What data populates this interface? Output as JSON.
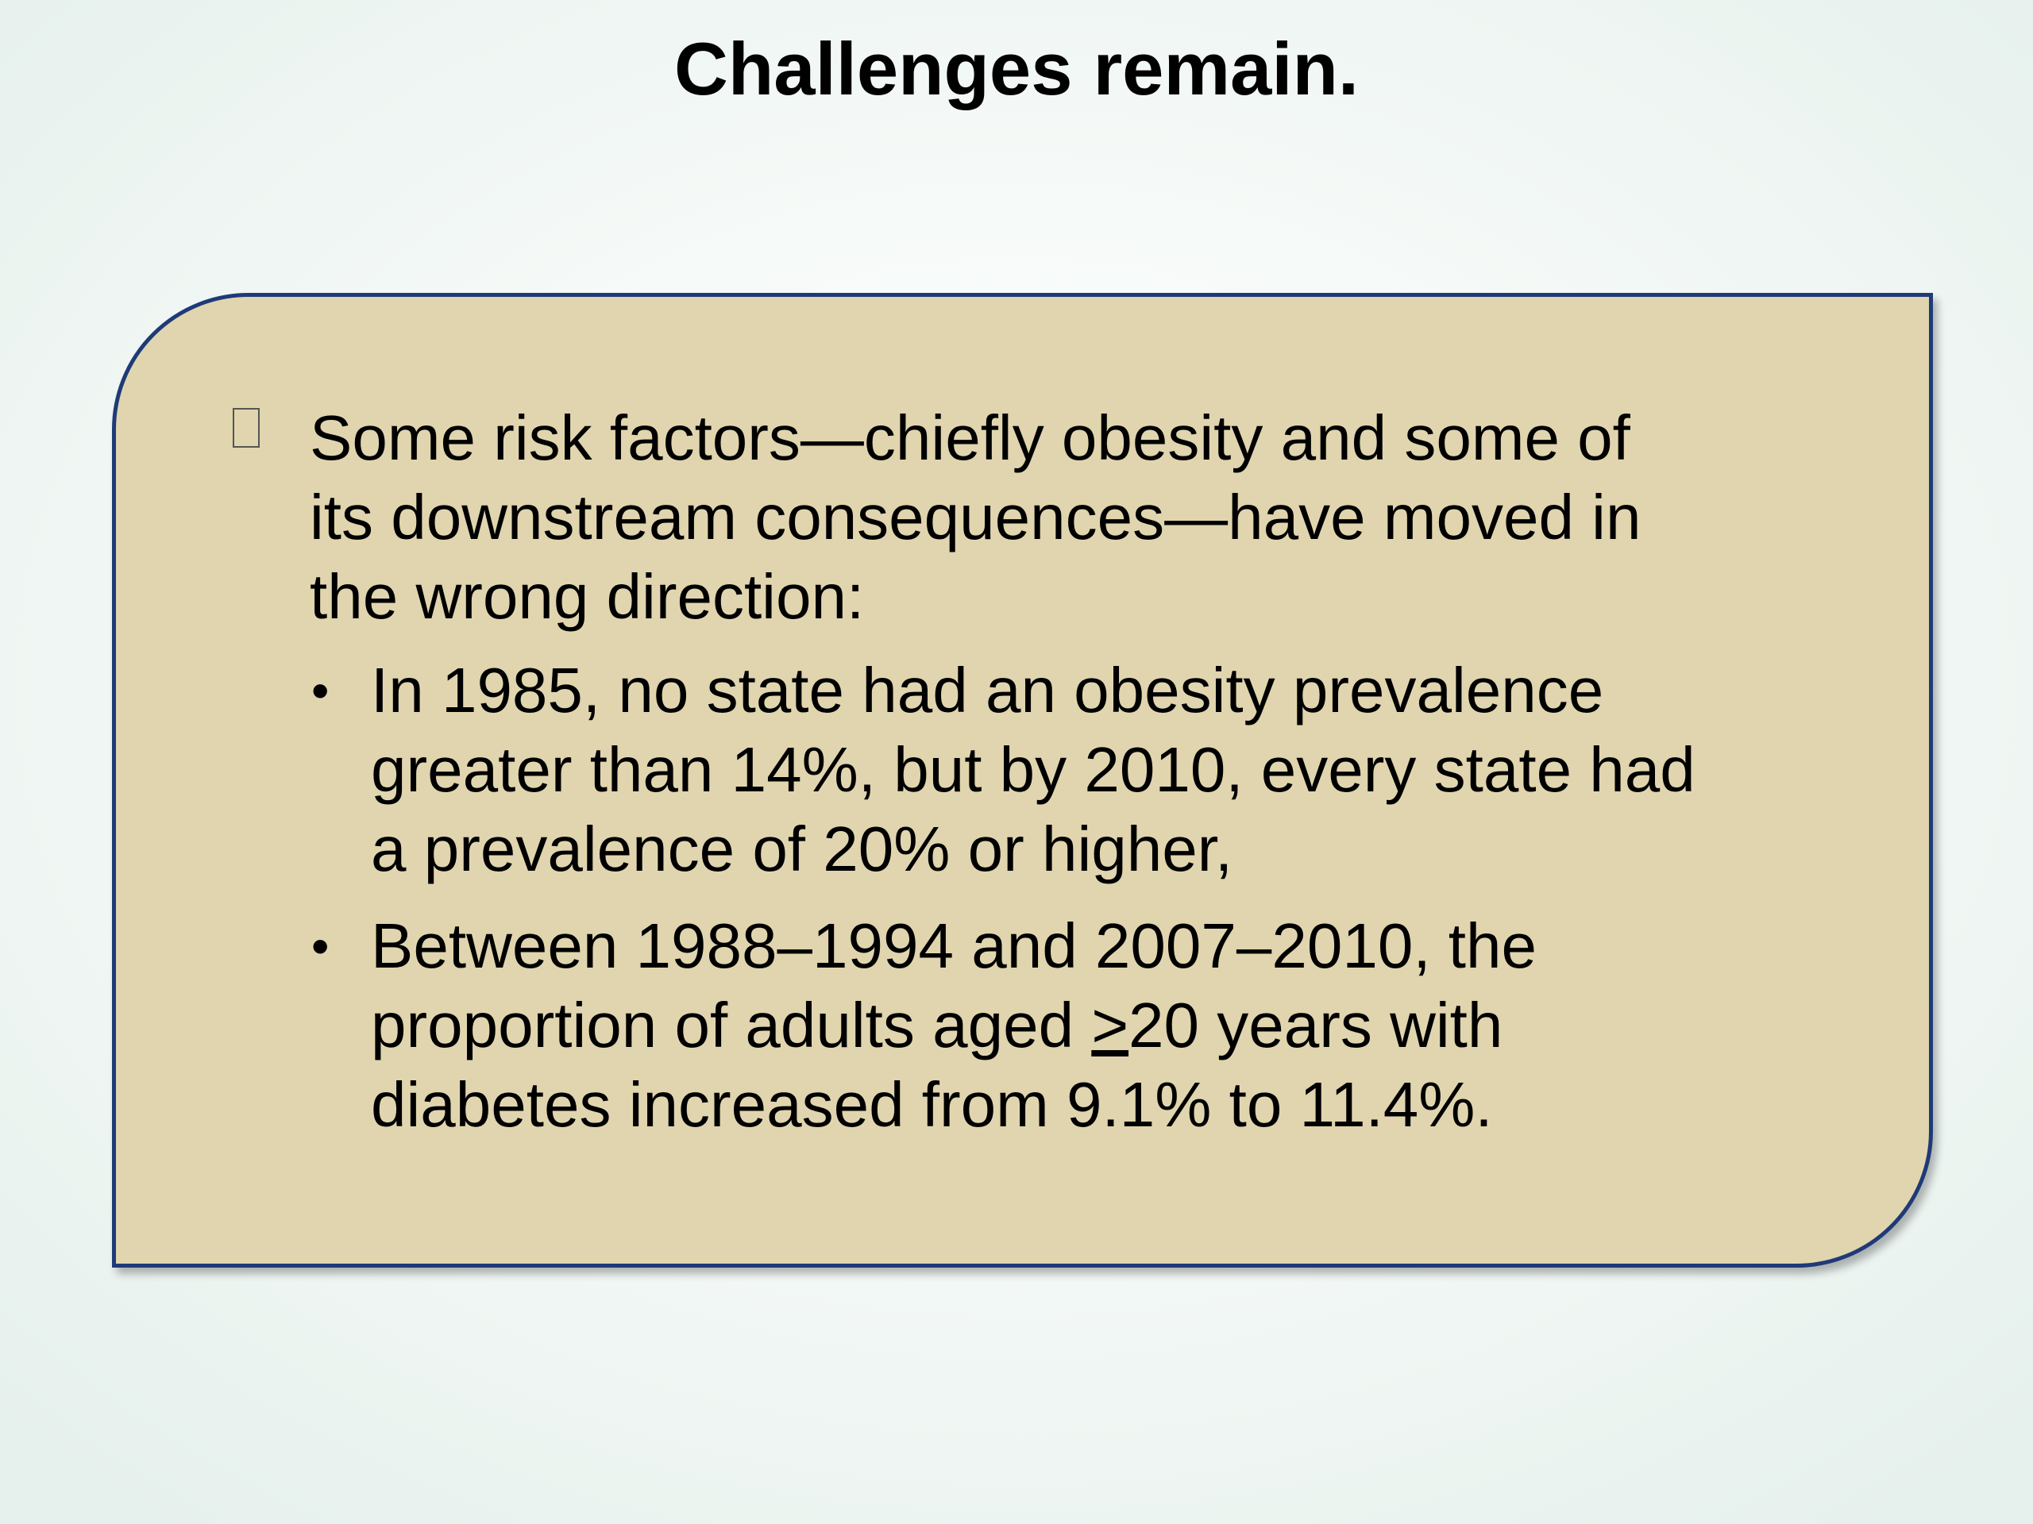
{
  "slide": {
    "title": "Challenges remain."
  },
  "content": {
    "main_bullet_icon": "missing-glyph-box",
    "main_point": "Some risk factors—chiefly obesity and some of\nits downstream consequences—have moved in\nthe wrong direction:",
    "sub_bullet_symbol": "•",
    "sub_points": [
      {
        "text": "In 1985, no state had an obesity prevalence\ngreater than 14%, but by 2010, every state had\na prevalence of 20% or higher,"
      },
      {
        "text_before": "Between 1988–1994 and 2007–2010, the\nproportion of adults aged ",
        "text_underlined": ">",
        "text_after": "20 years with\ndiabetes increased from 9.1% to 11.4%."
      }
    ]
  },
  "colors": {
    "box_fill": "#e0d5ae",
    "box_border": "#1f3a78",
    "background": "#eef5f2"
  }
}
